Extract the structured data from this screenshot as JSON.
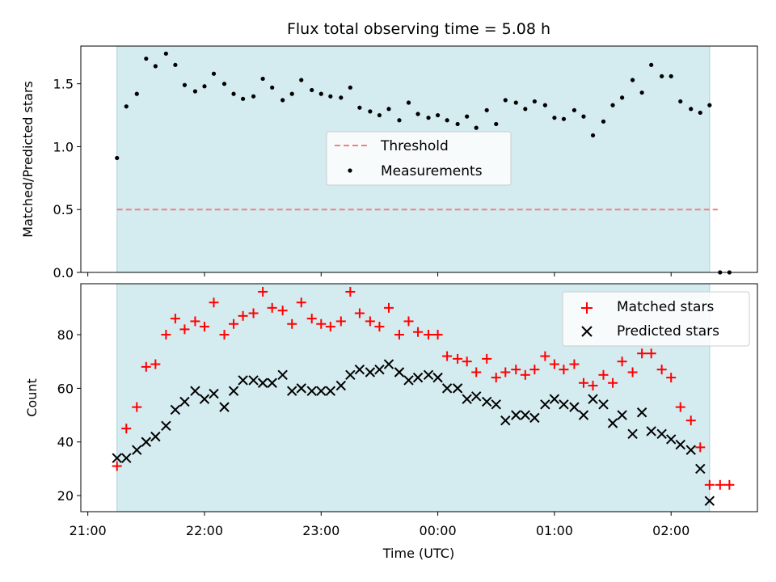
{
  "chart_data": [
    {
      "type": "scatter",
      "title": "Flux total observing time = 5.08 h",
      "xlabel": "",
      "ylabel": "Matched/Predicted stars",
      "xlim": [
        -0.06,
        5.74
      ],
      "ylim": [
        0.0,
        1.8
      ],
      "yticks": [
        "0.0",
        "0.5",
        "1.0",
        "1.5"
      ],
      "shaded_x": [
        0.25,
        5.33
      ],
      "shade_color": "#d4ebf0",
      "threshold": {
        "label": "Threshold",
        "value": 0.5,
        "x": [
          0.25,
          5.4
        ],
        "color": "#f08080"
      },
      "series": [
        {
          "name": "Measurements",
          "color": "#000000",
          "x": [
            0.25,
            0.33,
            0.42,
            0.5,
            0.58,
            0.67,
            0.75,
            0.83,
            0.92,
            1.0,
            1.08,
            1.17,
            1.25,
            1.33,
            1.42,
            1.5,
            1.58,
            1.67,
            1.75,
            1.83,
            1.92,
            2.0,
            2.08,
            2.17,
            2.25,
            2.33,
            2.42,
            2.5,
            2.58,
            2.67,
            2.75,
            2.83,
            2.92,
            3.0,
            3.08,
            3.17,
            3.25,
            3.33,
            3.42,
            3.5,
            3.58,
            3.67,
            3.75,
            3.83,
            3.92,
            4.0,
            4.08,
            4.17,
            4.25,
            4.33,
            4.42,
            4.5,
            4.58,
            4.67,
            4.75,
            4.83,
            4.92,
            5.0,
            5.08,
            5.17,
            5.25,
            5.33,
            5.42,
            5.5
          ],
          "values": [
            0.91,
            1.32,
            1.42,
            1.7,
            1.64,
            1.74,
            1.65,
            1.49,
            1.44,
            1.48,
            1.58,
            1.5,
            1.42,
            1.38,
            1.4,
            1.54,
            1.47,
            1.37,
            1.42,
            1.53,
            1.45,
            1.42,
            1.4,
            1.39,
            1.47,
            1.31,
            1.28,
            1.25,
            1.3,
            1.21,
            1.35,
            1.26,
            1.23,
            1.25,
            1.21,
            1.18,
            1.24,
            1.15,
            1.29,
            1.18,
            1.37,
            1.35,
            1.3,
            1.36,
            1.33,
            1.23,
            1.22,
            1.29,
            1.24,
            1.09,
            1.2,
            1.33,
            1.39,
            1.53,
            1.43,
            1.65,
            1.56,
            1.56,
            1.36,
            1.3,
            1.27,
            1.33,
            0.0,
            0.0
          ]
        }
      ],
      "legend": [
        "Threshold",
        "Measurements"
      ],
      "legend_position": "center"
    },
    {
      "type": "scatter",
      "xlabel": "Time (UTC)",
      "ylabel": "Count",
      "xlim": [
        -0.06,
        5.74
      ],
      "ylim": [
        14,
        99
      ],
      "xticks": [
        "21:00",
        "22:00",
        "23:00",
        "00:00",
        "01:00",
        "02:00"
      ],
      "yticks": [
        "20",
        "40",
        "60",
        "80"
      ],
      "shaded_x": [
        0.25,
        5.33
      ],
      "series": [
        {
          "name": "Matched stars",
          "color": "#ff0000",
          "marker": "+",
          "x": [
            0.25,
            0.33,
            0.42,
            0.5,
            0.58,
            0.67,
            0.75,
            0.83,
            0.92,
            1.0,
            1.08,
            1.17,
            1.25,
            1.33,
            1.42,
            1.5,
            1.58,
            1.67,
            1.75,
            1.83,
            1.92,
            2.0,
            2.08,
            2.17,
            2.25,
            2.33,
            2.42,
            2.5,
            2.58,
            2.67,
            2.75,
            2.83,
            2.92,
            3.0,
            3.08,
            3.17,
            3.25,
            3.33,
            3.42,
            3.5,
            3.58,
            3.67,
            3.75,
            3.83,
            3.92,
            4.0,
            4.08,
            4.17,
            4.25,
            4.33,
            4.42,
            4.5,
            4.58,
            4.67,
            4.75,
            4.83,
            4.92,
            5.0,
            5.08,
            5.17,
            5.25,
            5.33,
            5.42,
            5.5
          ],
          "values": [
            31,
            45,
            53,
            68,
            69,
            80,
            86,
            82,
            85,
            83,
            92,
            80,
            84,
            87,
            88,
            96,
            90,
            89,
            84,
            92,
            86,
            84,
            83,
            85,
            96,
            88,
            85,
            83,
            90,
            80,
            85,
            81,
            80,
            80,
            72,
            71,
            70,
            66,
            71,
            64,
            66,
            67,
            65,
            67,
            72,
            69,
            67,
            69,
            62,
            61,
            65,
            62,
            70,
            66,
            73,
            73,
            67,
            64,
            53,
            48,
            38,
            24,
            24,
            24
          ]
        },
        {
          "name": "Predicted stars",
          "color": "#000000",
          "marker": "x",
          "x": [
            0.25,
            0.33,
            0.42,
            0.5,
            0.58,
            0.67,
            0.75,
            0.83,
            0.92,
            1.0,
            1.08,
            1.17,
            1.25,
            1.33,
            1.42,
            1.5,
            1.58,
            1.67,
            1.75,
            1.83,
            1.92,
            2.0,
            2.08,
            2.17,
            2.25,
            2.33,
            2.42,
            2.5,
            2.58,
            2.67,
            2.75,
            2.83,
            2.92,
            3.0,
            3.08,
            3.17,
            3.25,
            3.33,
            3.42,
            3.5,
            3.58,
            3.67,
            3.75,
            3.83,
            3.92,
            4.0,
            4.08,
            4.17,
            4.25,
            4.33,
            4.42,
            4.5,
            4.58,
            4.67,
            4.75,
            4.83,
            4.92,
            5.0,
            5.08,
            5.17,
            5.25,
            5.33
          ],
          "values": [
            34,
            34,
            37,
            40,
            42,
            46,
            52,
            55,
            59,
            56,
            58,
            53,
            59,
            63,
            63,
            62,
            62,
            65,
            59,
            60,
            59,
            59,
            59,
            61,
            65,
            67,
            66,
            67,
            69,
            66,
            63,
            64,
            65,
            64,
            60,
            60,
            56,
            57,
            55,
            54,
            48,
            50,
            50,
            49,
            54,
            56,
            54,
            53,
            50,
            56,
            54,
            47,
            50,
            43,
            51,
            44,
            43,
            41,
            39,
            37,
            30,
            18
          ]
        }
      ],
      "legend": [
        "Matched stars",
        "Predicted stars"
      ],
      "legend_position": "upper right"
    }
  ]
}
